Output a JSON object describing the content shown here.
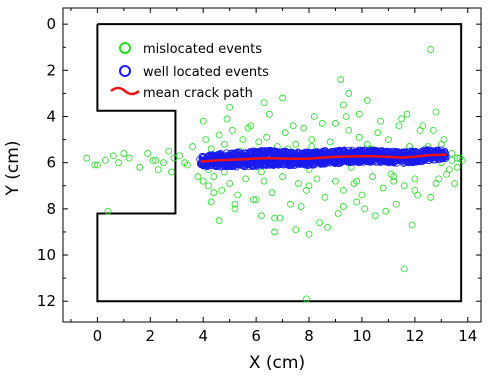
{
  "chart_data": {
    "type": "scatter",
    "title": "",
    "xlabel": "X (cm)",
    "ylabel": "Y (cm)",
    "xlim": [
      -1.3,
      14.5
    ],
    "ylim": [
      12.9,
      -0.7
    ],
    "y_inverted": true,
    "grid": false,
    "legend_placement": "top-left",
    "x_ticks": [
      "0",
      "2",
      "4",
      "6",
      "8",
      "10",
      "12",
      "14"
    ],
    "y_ticks": [
      "0",
      "2",
      "4",
      "6",
      "8",
      "10",
      "12"
    ],
    "specimen_outline": {
      "x": [
        0,
        13.75,
        13.75,
        0,
        0,
        2.95,
        2.95,
        0,
        0
      ],
      "y": [
        0,
        0,
        12,
        12,
        8.2,
        8.2,
        3.75,
        3.75,
        0
      ],
      "color": "#000000"
    },
    "series": [
      {
        "name": "mislocated events",
        "kind": "points",
        "marker": "open-circle",
        "color": "#22dd22",
        "x": [
          -0.4,
          -0.1,
          0.3,
          0.4,
          0.6,
          0.8,
          1.2,
          1.6,
          1.9,
          2.1,
          2.3,
          2.5,
          2.7,
          2.8,
          2.9,
          3.1,
          3.4,
          3.6,
          3.8,
          4.0,
          4.0,
          4.1,
          4.2,
          4.3,
          4.4,
          4.6,
          4.7,
          4.8,
          5.0,
          5.1,
          5.3,
          5.5,
          5.6,
          5.8,
          5.9,
          6.1,
          6.3,
          6.4,
          6.6,
          6.8,
          7.0,
          7.1,
          7.3,
          7.5,
          7.6,
          7.8,
          8.0,
          8.1,
          8.3,
          8.5,
          8.6,
          8.8,
          9.0,
          9.2,
          9.3,
          9.5,
          9.7,
          9.9,
          10.0,
          10.2,
          10.4,
          10.6,
          10.8,
          11.0,
          11.2,
          11.4,
          11.6,
          11.8,
          12.0,
          12.2,
          12.4,
          12.6,
          12.8,
          13.0,
          13.2,
          13.4,
          13.6,
          13.7,
          13.8,
          4.4,
          5.2,
          6.0,
          6.9,
          7.7,
          8.4,
          9.1,
          9.8,
          10.5,
          11.3,
          12.1,
          12.9,
          4.9,
          5.7,
          6.5,
          7.4,
          8.2,
          9.0,
          9.9,
          10.7,
          11.5,
          12.3,
          13.1,
          4.2,
          5.4,
          6.2,
          7.2,
          8.0,
          8.9,
          9.6,
          10.3,
          11.1,
          12.5,
          13.3,
          4.6,
          6.7,
          8.7,
          10.1,
          11.9,
          13.5,
          5.0,
          7.0,
          9.4,
          11.7,
          12.7,
          4.3,
          6.2,
          7.9,
          9.3,
          10.9,
          12.6,
          5.9,
          8.1,
          10.4,
          11.8,
          12.9,
          13.6,
          0.0,
          1.0,
          2.2,
          3.3,
          6.3,
          9.3,
          12.8,
          11.6,
          8.0,
          7.9,
          9.5,
          10.2,
          5.2,
          6.7,
          7.5,
          12.0,
          4.8,
          9.8,
          11.2,
          13.0,
          13.4
        ],
        "y": [
          5.8,
          6.1,
          5.9,
          8.1,
          5.7,
          6.0,
          5.8,
          6.2,
          5.6,
          5.9,
          6.3,
          6.0,
          5.5,
          6.4,
          5.8,
          5.7,
          6.1,
          5.3,
          6.6,
          4.2,
          6.8,
          5.0,
          7.0,
          5.4,
          6.6,
          4.8,
          7.2,
          5.2,
          6.9,
          4.6,
          7.4,
          5.0,
          6.7,
          4.4,
          7.6,
          5.1,
          6.8,
          4.9,
          7.3,
          5.3,
          6.6,
          4.7,
          7.8,
          5.2,
          6.9,
          4.5,
          7.0,
          5.0,
          6.7,
          4.3,
          7.5,
          5.1,
          6.8,
          2.4,
          7.2,
          4.6,
          6.9,
          4.9,
          7.4,
          5.2,
          6.6,
          4.7,
          7.1,
          5.0,
          6.8,
          4.4,
          7.0,
          5.3,
          6.7,
          4.6,
          5.4,
          1.1,
          6.9,
          5.2,
          6.5,
          5.6,
          6.2,
          5.8,
          5.9,
          7.3,
          8.0,
          7.6,
          8.4,
          7.9,
          8.6,
          8.2,
          7.7,
          8.3,
          7.8,
          7.4,
          6.7,
          4.1,
          4.5,
          3.9,
          4.4,
          4.0,
          4.3,
          3.9,
          4.2,
          4.1,
          4.4,
          5.0,
          6.3,
          5.5,
          6.4,
          5.4,
          6.3,
          5.5,
          6.2,
          5.4,
          6.5,
          5.3,
          6.3,
          8.5,
          9.0,
          8.8,
          8.0,
          8.7,
          6.9,
          3.6,
          3.2,
          4.0,
          3.9,
          4.6,
          7.7,
          8.3,
          7.2,
          7.9,
          8.1,
          7.5,
          5.5,
          5.3,
          5.4,
          5.3,
          5.6,
          5.8,
          6.1,
          5.6,
          5.9,
          6.0,
          3.4,
          3.5,
          3.8,
          10.6,
          9.1,
          11.9,
          3.0,
          3.3,
          7.8,
          8.4,
          8.9,
          7.2,
          6.4,
          6.8,
          6.6,
          6.0,
          5.9
        ],
        "seed_note": ""
      },
      {
        "name": "well located events",
        "kind": "band",
        "marker": "open-circle",
        "color": "#1a1aee",
        "x": [
          3.9,
          4.5,
          5.0,
          5.5,
          6.0,
          6.5,
          7.0,
          7.5,
          8.0,
          8.5,
          9.0,
          9.5,
          10.0,
          10.5,
          11.0,
          11.5,
          12.0,
          12.5,
          13.2
        ],
        "y_center": [
          5.95,
          5.9,
          5.88,
          5.85,
          5.82,
          5.8,
          5.82,
          5.83,
          5.83,
          5.78,
          5.75,
          5.73,
          5.72,
          5.72,
          5.75,
          5.78,
          5.74,
          5.68,
          5.65
        ],
        "y_spread": [
          0.22,
          0.28,
          0.32,
          0.34,
          0.35,
          0.34,
          0.32,
          0.3,
          0.3,
          0.3,
          0.3,
          0.28,
          0.28,
          0.27,
          0.26,
          0.26,
          0.27,
          0.25,
          0.2
        ]
      },
      {
        "name": "mean crack path",
        "kind": "line",
        "color": "#ee1111",
        "x": [
          3.9,
          4.5,
          5.0,
          5.5,
          6.0,
          6.5,
          7.0,
          7.5,
          8.0,
          8.5,
          9.0,
          9.5,
          10.0,
          10.5,
          11.0,
          11.5,
          12.0,
          12.5,
          13.2
        ],
        "y": [
          5.95,
          5.9,
          5.88,
          5.85,
          5.82,
          5.8,
          5.82,
          5.83,
          5.83,
          5.78,
          5.75,
          5.73,
          5.72,
          5.72,
          5.75,
          5.78,
          5.74,
          5.68,
          5.65
        ]
      }
    ]
  }
}
